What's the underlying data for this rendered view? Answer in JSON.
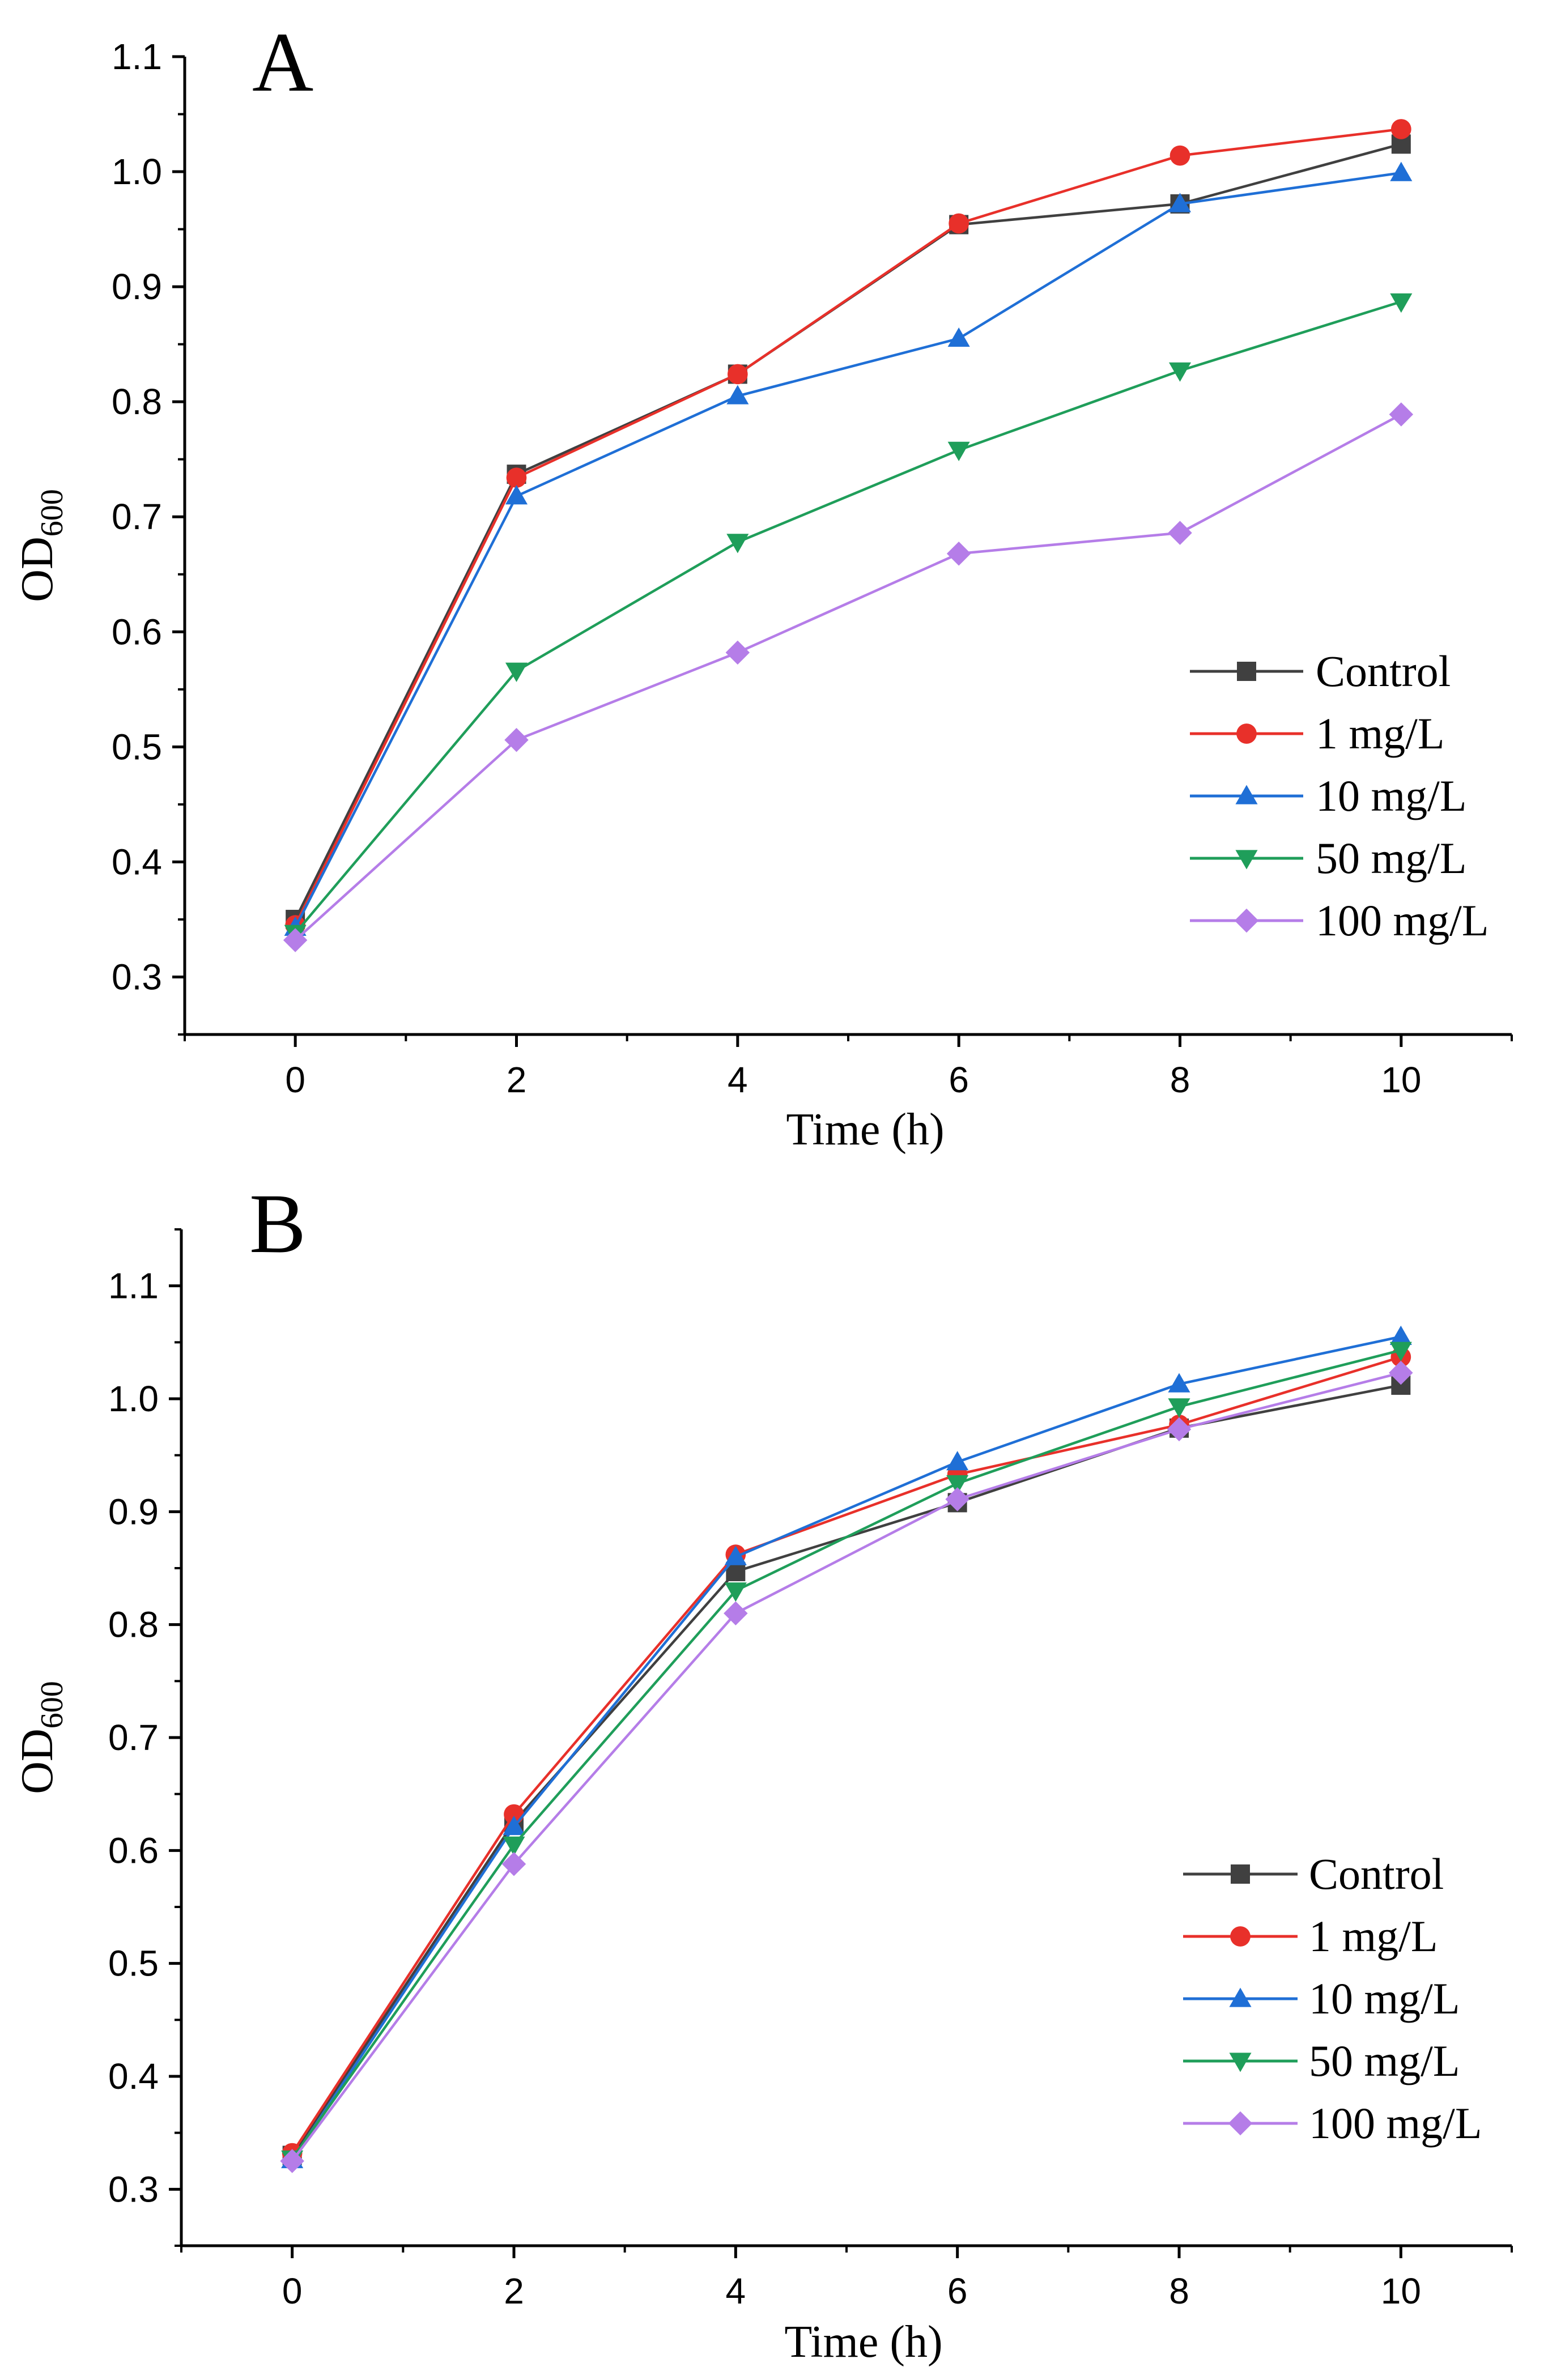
{
  "chart_data": [
    {
      "type": "line",
      "panel_label": "A",
      "title": "",
      "xlabel": "Time (h)",
      "ylabel": "OD",
      "ylabel_sub": "600",
      "x": [
        0,
        2,
        4,
        6,
        8,
        10
      ],
      "xlim": [
        -1,
        11
      ],
      "ylim": [
        0.25,
        1.1
      ],
      "xticks": [
        "0",
        "2",
        "4",
        "6",
        "8",
        "10"
      ],
      "yticks": [
        "0.3",
        "0.4",
        "0.5",
        "0.6",
        "0.7",
        "0.8",
        "0.9",
        "1.0",
        "1.1"
      ],
      "grid": false,
      "legend_position": "lower-right",
      "series": [
        {
          "name": "Control",
          "color": "#404040",
          "marker": "square",
          "values": [
            0.35,
            0.737,
            0.824,
            0.954,
            0.972,
            1.024
          ]
        },
        {
          "name": "1 mg/L",
          "color": "#e8302a",
          "marker": "circle",
          "values": [
            0.345,
            0.734,
            0.824,
            0.955,
            1.014,
            1.037
          ]
        },
        {
          "name": "10 mg/L",
          "color": "#1f6fd6",
          "marker": "triangle-up",
          "values": [
            0.343,
            0.718,
            0.805,
            0.855,
            0.972,
            0.999
          ]
        },
        {
          "name": "50 mg/L",
          "color": "#1f9e5a",
          "marker": "triangle-down",
          "values": [
            0.338,
            0.566,
            0.678,
            0.758,
            0.827,
            0.887
          ]
        },
        {
          "name": "100 mg/L",
          "color": "#b57de8",
          "marker": "diamond",
          "values": [
            0.332,
            0.506,
            0.582,
            0.668,
            0.686,
            0.789
          ]
        }
      ]
    },
    {
      "type": "line",
      "panel_label": "B",
      "title": "",
      "xlabel": "Time (h)",
      "ylabel": "OD",
      "ylabel_sub": "600",
      "x": [
        0,
        2,
        4,
        6,
        8,
        10
      ],
      "xlim": [
        -1,
        11
      ],
      "ylim": [
        0.25,
        1.15
      ],
      "xticks": [
        "0",
        "2",
        "4",
        "6",
        "8",
        "10"
      ],
      "yticks": [
        "0.3",
        "0.4",
        "0.5",
        "0.6",
        "0.7",
        "0.8",
        "0.9",
        "1.0",
        "1.1"
      ],
      "grid": false,
      "legend_position": "lower-right",
      "series": [
        {
          "name": "Control",
          "color": "#404040",
          "marker": "square",
          "values": [
            0.33,
            0.625,
            0.847,
            0.908,
            0.974,
            1.012
          ]
        },
        {
          "name": "1 mg/L",
          "color": "#e8302a",
          "marker": "circle",
          "values": [
            0.332,
            0.632,
            0.862,
            0.933,
            0.977,
            1.037
          ]
        },
        {
          "name": "10 mg/L",
          "color": "#1f6fd6",
          "marker": "triangle-up",
          "values": [
            0.326,
            0.621,
            0.86,
            0.944,
            1.013,
            1.055
          ]
        },
        {
          "name": "50 mg/L",
          "color": "#1f9e5a",
          "marker": "triangle-down",
          "values": [
            0.327,
            0.605,
            0.83,
            0.925,
            0.993,
            1.043
          ]
        },
        {
          "name": "100 mg/L",
          "color": "#b57de8",
          "marker": "diamond",
          "values": [
            0.325,
            0.588,
            0.81,
            0.911,
            0.973,
            1.023
          ]
        }
      ]
    }
  ]
}
